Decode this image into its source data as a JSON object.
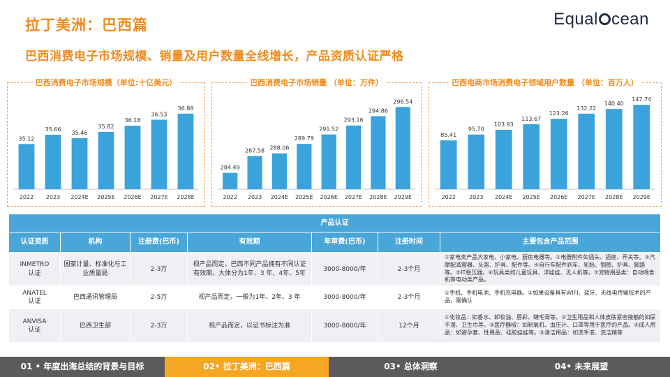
{
  "header": {
    "title": "拉丁美洲：巴西篇",
    "logo_text_pre": "Equal",
    "logo_text_post": "cean",
    "subtitle": "巴西消费电子市场规模、销量及用户数量全线增长，产品资质认证严格"
  },
  "colors": {
    "accent": "#F08C1E",
    "bar": "#3BA3DB",
    "table_header": "#49A6D9",
    "footer_dark": "#5B5B5B",
    "footer_active": "#F5A623"
  },
  "chart_data": [
    {
      "type": "bar",
      "title": "巴西消费电子市场规模（单位:十亿美元）",
      "categories": [
        "2022",
        "2023",
        "2024E",
        "2025E",
        "2026E",
        "2027E",
        "2028E"
      ],
      "values": [
        35.12,
        35.66,
        35.46,
        35.82,
        36.18,
        36.53,
        36.88
      ],
      "ylim": [
        32.5,
        37.6
      ]
    },
    {
      "type": "bar",
      "title": "巴西消费电子市场销量 （单位：万件）",
      "categories": [
        "2022",
        "2023",
        "2024E",
        "2025E",
        "2026E",
        "2027E",
        "2028E",
        "2029E"
      ],
      "values": [
        284.49,
        287.58,
        288.06,
        289.79,
        291.52,
        293.16,
        294.86,
        296.54
      ],
      "ylim": [
        281.5,
        297.6
      ]
    },
    {
      "type": "bar",
      "title": "巴西电商市场消费电子领域用户数量 （单位：百万人）",
      "categories": [
        "2022",
        "2023",
        "2024E",
        "2025E",
        "2026E",
        "2027E",
        "2028E",
        "2029E"
      ],
      "values": [
        85.41,
        95.7,
        103.93,
        113.67,
        123.26,
        132.22,
        140.4,
        147.74
      ],
      "ylim": [
        0,
        154
      ]
    }
  ],
  "table": {
    "caption": "产品认证",
    "headers": [
      "认证资质",
      "机构",
      "注册费(巴币)",
      "有效期",
      "年审费(巴币)",
      "注册时间",
      "主要包含产品范围"
    ],
    "rows": [
      {
        "cert": "INMETRO\n认证",
        "org": "国家计量、标准化与工业质量局",
        "fee": "2-3万",
        "validity": "视产品而定，巴西不同产品拥有不同认证有效期，大体分为1年、3 年、4年、5年",
        "annual": "3000-8000/年",
        "time": "2-3个月",
        "scope": "①家电类产品大家电、小家电、厨房电器等。②电器附件如插头、插座、开关等。③汽摩配减震器、头盔、护具、配件等。④自行车配件刹车、轮胎、钢圈、护具、脚踏等。⑤IT稳压器。⑥玩具类如儿童玩具、洋娃娃、无人机等。⑦宠物用品类：自动喂食机等电动类产品。"
      },
      {
        "cert": "ANATEL\n认证",
        "org": "巴西通讯管理局",
        "fee": "2-5万",
        "validity": "视产品而定，一般为1年、2年、3 年",
        "annual": "3000-8000/年",
        "time": "2-3个月",
        "scope": "①手机、手机电池、手机充电器。②如果设备具有WIFI、蓝牙、无线电传输技术的产品，需确认"
      },
      {
        "cert": "ANVISA\n认证",
        "org": "巴西卫生部",
        "fee": "2-3万",
        "validity": "视产品而定，以证书标注为准",
        "annual": "3000-8000/年",
        "time": "12个月",
        "scope": "①化妆品：如香水、卸妆油、唇彩、睫毛膏等。②卫生用品和人体皮肤紧密接触的如尿不湿、卫生巾等。③医疗器械：如制氧机、血压计、口罩等用于医疗的产品。④成人用品：如避孕套、性用品、硅胶娃娃等。⑤清洁用品：如洗手液、洗洁精等"
      }
    ]
  },
  "footer": {
    "items": [
      "01 • 年度出海总结的背景与目标",
      "02• 拉丁美洲：巴西篇",
      "03• 总体洞察",
      "04• 未来展望"
    ],
    "active_index": 1
  }
}
